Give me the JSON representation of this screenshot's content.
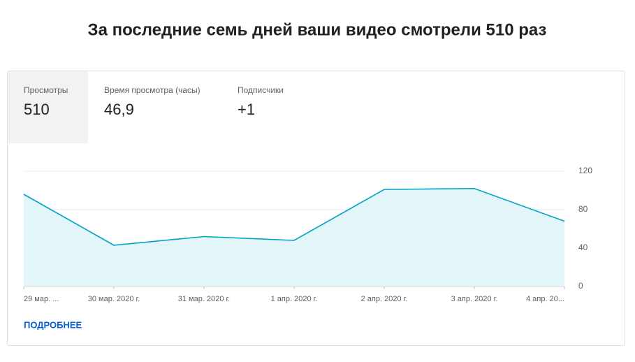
{
  "header": {
    "title": "За последние семь дней ваши видео смотрели 510 раз"
  },
  "tabs": [
    {
      "label": "Просмотры",
      "value": "510",
      "selected": true
    },
    {
      "label": "Время просмотра (часы)",
      "value": "46,9",
      "selected": false
    },
    {
      "label": "Подписчики",
      "value": "+1",
      "selected": false
    }
  ],
  "chart_data": {
    "type": "area",
    "categories": [
      "29 мар. ...",
      "30 мар. 2020 г.",
      "31 мар. 2020 г.",
      "1 апр. 2020 г.",
      "2 апр. 2020 г.",
      "3 апр. 2020 г.",
      "4 апр. 20..."
    ],
    "values": [
      96,
      43,
      52,
      48,
      101,
      102,
      68
    ],
    "color": "#00a3c4",
    "fill_color": "#e2f5f9",
    "ylim": [
      0,
      120
    ],
    "yticks": [
      0,
      40,
      80,
      120
    ],
    "grid": true
  },
  "link": "ПОДРОБНЕЕ"
}
